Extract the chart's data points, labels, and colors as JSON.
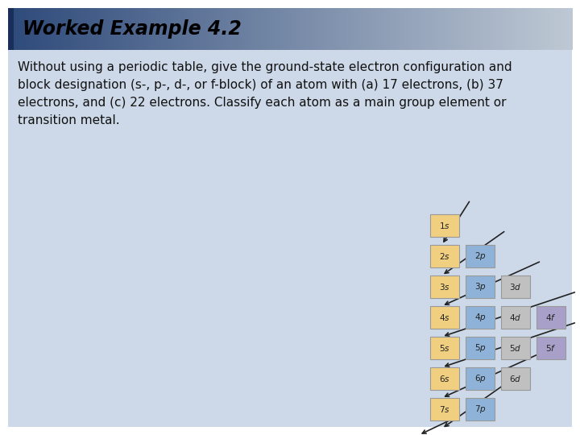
{
  "title": "Worked Example 4.2",
  "body_text_lines": [
    "Without using a periodic table, give the ground-state electron configuration and",
    "block designation (s-, p-, d-, or f-block) of an atom with (a) 17 electrons, (b) 37",
    "electrons, and (c) 22 electrons. Classify each atom as a main group element or",
    "transition metal."
  ],
  "header_bg_left": "#2e4a7a",
  "header_bg_right": "#bec8d4",
  "body_bg": "#cdd9e8",
  "outer_bg": "#ffffff",
  "box_s_color": "#f0d080",
  "box_p_color": "#8fb3d8",
  "box_d_color": "#c0c0c0",
  "box_f_color": "#a8a0c8",
  "box_border": "#999999",
  "box_text_color": "#222222",
  "orbitals": [
    {
      "label": "1s",
      "row": 0,
      "col": 0,
      "type": "s"
    },
    {
      "label": "2s",
      "row": 1,
      "col": 0,
      "type": "s"
    },
    {
      "label": "2p",
      "row": 1,
      "col": 1,
      "type": "p"
    },
    {
      "label": "3s",
      "row": 2,
      "col": 0,
      "type": "s"
    },
    {
      "label": "3p",
      "row": 2,
      "col": 1,
      "type": "p"
    },
    {
      "label": "3d",
      "row": 2,
      "col": 2,
      "type": "d"
    },
    {
      "label": "4s",
      "row": 3,
      "col": 0,
      "type": "s"
    },
    {
      "label": "4p",
      "row": 3,
      "col": 1,
      "type": "p"
    },
    {
      "label": "4d",
      "row": 3,
      "col": 2,
      "type": "d"
    },
    {
      "label": "4f",
      "row": 3,
      "col": 3,
      "type": "f"
    },
    {
      "label": "5s",
      "row": 4,
      "col": 0,
      "type": "s"
    },
    {
      "label": "5p",
      "row": 4,
      "col": 1,
      "type": "p"
    },
    {
      "label": "5d",
      "row": 4,
      "col": 2,
      "type": "d"
    },
    {
      "label": "5f",
      "row": 4,
      "col": 3,
      "type": "f"
    },
    {
      "label": "6s",
      "row": 5,
      "col": 0,
      "type": "s"
    },
    {
      "label": "6p",
      "row": 5,
      "col": 1,
      "type": "p"
    },
    {
      "label": "6d",
      "row": 5,
      "col": 2,
      "type": "d"
    },
    {
      "label": "7s",
      "row": 6,
      "col": 0,
      "type": "s"
    },
    {
      "label": "7p",
      "row": 6,
      "col": 1,
      "type": "p"
    }
  ]
}
